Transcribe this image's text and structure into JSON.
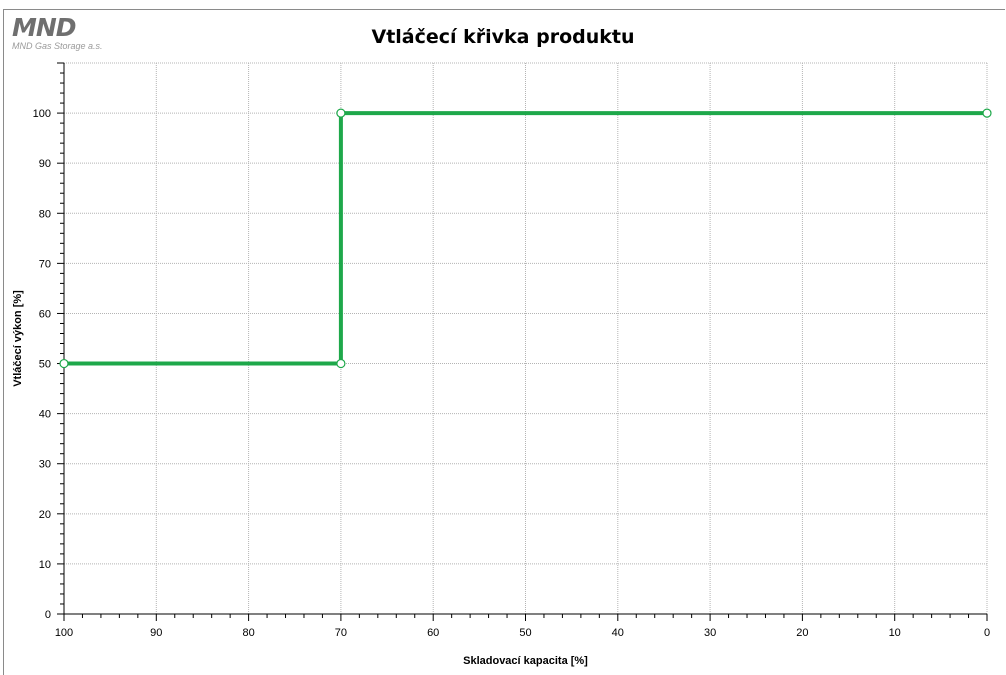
{
  "logo": {
    "mark": "MND",
    "subtitle": "MND Gas Storage a.s."
  },
  "colors": {
    "series": "#1ea84a",
    "grid": "#b4b4b4",
    "axis": "#000000"
  },
  "chart_data": {
    "type": "line",
    "title": "Vtláčecí křivka produktu",
    "xlabel": "Skladovací kapacita [%]",
    "ylabel": "Vtláčecí výkon [%]",
    "xlim": [
      100,
      0
    ],
    "ylim": [
      0,
      100
    ],
    "x_reversed": true,
    "xticks": [
      100,
      90,
      80,
      70,
      60,
      50,
      40,
      30,
      20,
      10,
      0
    ],
    "yticks": [
      0,
      10,
      20,
      30,
      40,
      50,
      60,
      70,
      80,
      90,
      100
    ],
    "grid": true,
    "legend": "none",
    "series": [
      {
        "x": [
          100,
          70,
          70,
          0
        ],
        "y": [
          50,
          50,
          100,
          100
        ]
      }
    ]
  }
}
